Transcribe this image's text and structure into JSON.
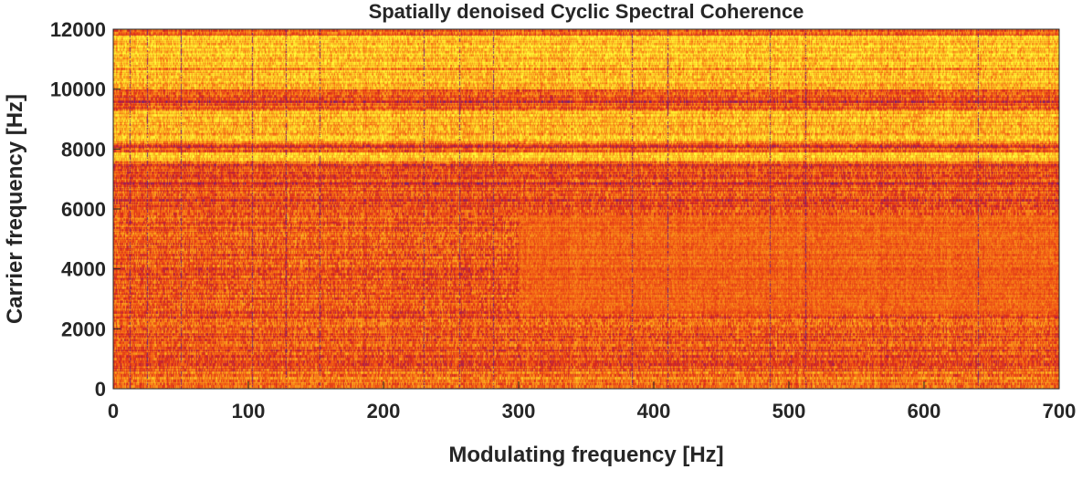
{
  "chart_data": {
    "type": "heatmap",
    "title": "Spatially denoised Cyclic Spectral Coherence",
    "xlabel": "Modulating frequency [Hz]",
    "ylabel": "Carrier frequency [Hz]",
    "xlim": [
      0,
      700
    ],
    "ylim": [
      0,
      12000
    ],
    "xticks": [
      0,
      100,
      200,
      300,
      400,
      500,
      600,
      700
    ],
    "yticks": [
      0,
      2000,
      4000,
      6000,
      8000,
      10000,
      12000
    ],
    "grid": false,
    "colormap": [
      "#3a2a9e",
      "#9a1e5e",
      "#d6261e",
      "#f25a14",
      "#fa9a1c",
      "#fdd227",
      "#ffff3a"
    ],
    "vertical_line_frequencies": [
      12,
      25,
      50,
      103,
      128,
      153,
      230,
      256,
      281,
      384,
      410,
      486,
      512,
      640
    ],
    "bright_bands_carrier": [
      {
        "from": 10000,
        "to": 11800,
        "level": 0.78
      },
      {
        "from": 8200,
        "to": 9300,
        "level": 0.74
      },
      {
        "from": 7600,
        "to": 7900,
        "level": 0.82
      }
    ],
    "horizontal_lines_carrier": [
      10700,
      9600,
      8100,
      7450,
      6850,
      6300
    ],
    "orange_patch": {
      "x_from": 300,
      "x_to": 700,
      "y_from": 2500,
      "y_to": 5800,
      "level": 0.55
    },
    "low_band": {
      "from": 0,
      "to": 700,
      "level": 0.58
    }
  }
}
